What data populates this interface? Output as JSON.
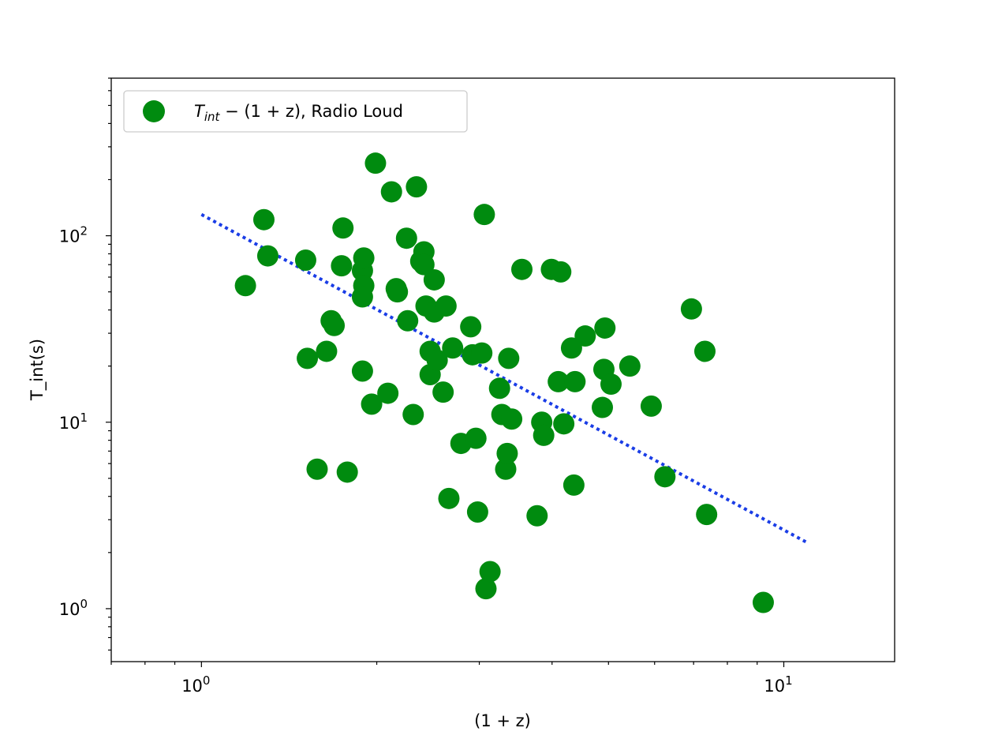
{
  "chart_data": {
    "type": "scatter",
    "x_scale": "log",
    "y_scale": "log",
    "xlim": [
      0.7,
      15.5
    ],
    "ylim": [
      0.52,
      700
    ],
    "xlabel": "(1 + z)",
    "ylabel": "T_int(s)",
    "x_ticks": [
      {
        "value": 1,
        "base": "10",
        "exp": "0"
      },
      {
        "value": 10,
        "base": "10",
        "exp": "1"
      }
    ],
    "y_ticks": [
      {
        "value": 1,
        "base": "10",
        "exp": "0"
      },
      {
        "value": 10,
        "base": "10",
        "exp": "1"
      },
      {
        "value": 100,
        "base": "10",
        "exp": "2"
      }
    ],
    "legend": {
      "location": "upper-left",
      "label": {
        "t": "T",
        "sub": "int",
        "rest": " − (1 + z), Radio Loud"
      }
    },
    "colors": {
      "points": "#008b0f",
      "fit": "#1a3de6"
    },
    "fit_line": {
      "style": "dotted",
      "points": [
        [
          1.0,
          130
        ],
        [
          11.0,
          2.25
        ]
      ]
    },
    "series": [
      {
        "points": [
          [
            1.19,
            54
          ],
          [
            1.28,
            122
          ],
          [
            1.3,
            78
          ],
          [
            1.51,
            74
          ],
          [
            1.52,
            22
          ],
          [
            1.58,
            5.6
          ],
          [
            1.64,
            24
          ],
          [
            1.67,
            35
          ],
          [
            1.69,
            33
          ],
          [
            1.74,
            69
          ],
          [
            1.75,
            110
          ],
          [
            1.78,
            5.4
          ],
          [
            1.89,
            65
          ],
          [
            1.9,
            76
          ],
          [
            1.9,
            54
          ],
          [
            1.89,
            47
          ],
          [
            1.89,
            18.8
          ],
          [
            1.96,
            12.5
          ],
          [
            1.99,
            245
          ],
          [
            2.09,
            14.3
          ],
          [
            2.12,
            172
          ],
          [
            2.16,
            52
          ],
          [
            2.17,
            50
          ],
          [
            2.25,
            97
          ],
          [
            2.26,
            35
          ],
          [
            2.31,
            11
          ],
          [
            2.34,
            183
          ],
          [
            2.38,
            73
          ],
          [
            2.41,
            82
          ],
          [
            2.41,
            70
          ],
          [
            2.43,
            42
          ],
          [
            2.47,
            24
          ],
          [
            2.47,
            18
          ],
          [
            2.51,
            58
          ],
          [
            2.51,
            39
          ],
          [
            2.54,
            21.5
          ],
          [
            2.6,
            14.5
          ],
          [
            2.63,
            42
          ],
          [
            2.66,
            3.9
          ],
          [
            2.7,
            25
          ],
          [
            2.79,
            7.7
          ],
          [
            2.9,
            32.5
          ],
          [
            2.92,
            23
          ],
          [
            2.96,
            8.2
          ],
          [
            2.98,
            3.3
          ],
          [
            3.03,
            23.5
          ],
          [
            3.06,
            130
          ],
          [
            3.08,
            1.28
          ],
          [
            3.13,
            1.58
          ],
          [
            3.25,
            15.2
          ],
          [
            3.28,
            11
          ],
          [
            3.33,
            5.6
          ],
          [
            3.35,
            6.8
          ],
          [
            3.37,
            22
          ],
          [
            3.41,
            10.4
          ],
          [
            3.55,
            66
          ],
          [
            3.77,
            3.15
          ],
          [
            3.84,
            10
          ],
          [
            3.87,
            8.5
          ],
          [
            3.99,
            66
          ],
          [
            4.1,
            16.5
          ],
          [
            4.14,
            64
          ],
          [
            4.19,
            9.8
          ],
          [
            4.32,
            25
          ],
          [
            4.36,
            4.6
          ],
          [
            4.38,
            16.5
          ],
          [
            4.56,
            29
          ],
          [
            4.88,
            12
          ],
          [
            4.91,
            19.2
          ],
          [
            4.93,
            32
          ],
          [
            5.05,
            16
          ],
          [
            5.44,
            20
          ],
          [
            5.92,
            12.2
          ],
          [
            6.25,
            5.1
          ],
          [
            6.94,
            40.5
          ],
          [
            7.32,
            24
          ],
          [
            7.37,
            3.2
          ],
          [
            9.22,
            1.08
          ]
        ]
      }
    ]
  }
}
